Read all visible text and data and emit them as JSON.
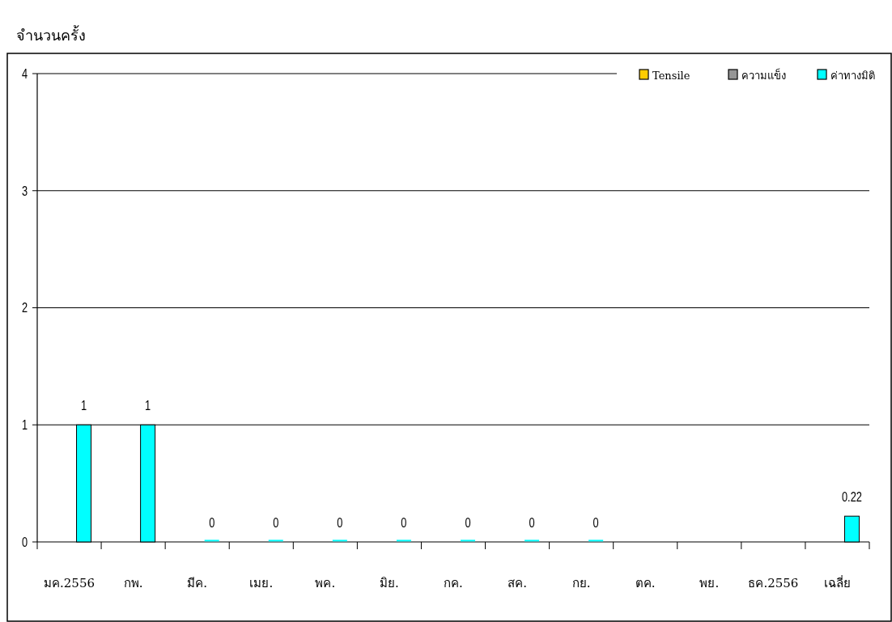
{
  "chart_data": {
    "type": "bar",
    "ylabel": "จำนวนครั้ง",
    "categories": [
      "มค.2556",
      "กพ.",
      "มีค.",
      "เมย.",
      "พค.",
      "มิย.",
      "กค.",
      "สค.",
      "กย.",
      "ตค.",
      "พย.",
      "ธค.2556",
      "เฉลี่ย"
    ],
    "series": [
      {
        "name": "Tensile",
        "color": "#ffcc00",
        "values": [
          null,
          null,
          null,
          null,
          null,
          null,
          null,
          null,
          null,
          null,
          null,
          null,
          null
        ]
      },
      {
        "name": "ความแข็ง",
        "color": "#969696",
        "values": [
          null,
          null,
          null,
          null,
          null,
          null,
          null,
          null,
          null,
          null,
          null,
          null,
          null
        ]
      },
      {
        "name": "ค่าทางมิติ",
        "color": "#00ffff",
        "values": [
          1,
          1,
          0,
          0,
          0,
          0,
          0,
          0,
          0,
          null,
          null,
          null,
          0.22
        ],
        "value_labels": [
          "1",
          "1",
          "0",
          "0",
          "0",
          "0",
          "0",
          "0",
          "0",
          null,
          null,
          null,
          "0.22"
        ]
      }
    ],
    "ylim": [
      0,
      4
    ],
    "yticks": [
      0,
      1,
      2,
      3,
      4
    ],
    "grid": "y",
    "legend": "top right"
  }
}
